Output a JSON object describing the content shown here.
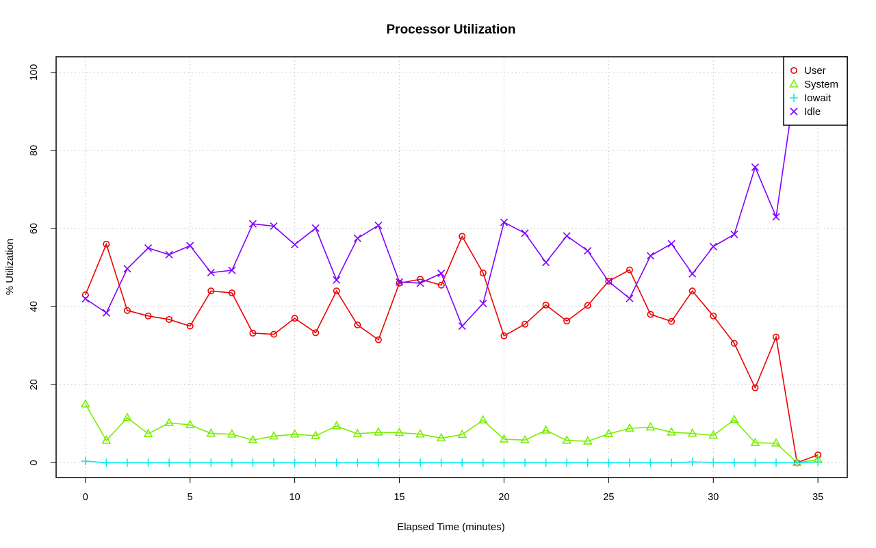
{
  "chart_data": {
    "type": "line",
    "title": "Processor Utilization",
    "xlabel": "Elapsed Time (minutes)",
    "ylabel": "% Utilization",
    "xlim": [
      -1.4,
      36.4
    ],
    "ylim": [
      -3.8,
      104
    ],
    "xticks": [
      0,
      5,
      10,
      15,
      20,
      25,
      30,
      35
    ],
    "yticks": [
      0,
      20,
      40,
      60,
      80,
      100
    ],
    "grid": true,
    "legend_position": "top-right",
    "x": [
      0,
      1,
      2,
      3,
      4,
      5,
      6,
      7,
      8,
      9,
      10,
      11,
      12,
      13,
      14,
      15,
      16,
      17,
      18,
      19,
      20,
      21,
      22,
      23,
      24,
      25,
      26,
      27,
      28,
      29,
      30,
      31,
      32,
      33,
      34,
      35
    ],
    "series": [
      {
        "name": "User",
        "color": "#ee0000",
        "marker": "circle",
        "values": [
          43,
          56,
          39,
          37.6,
          36.7,
          35,
          44,
          43.5,
          33.2,
          32.9,
          37,
          33.3,
          44,
          35.3,
          31.5,
          46,
          47,
          45.5,
          58,
          48.6,
          32.5,
          35.5,
          40.4,
          36.3,
          40.3,
          46.5,
          49.4,
          38,
          36.2,
          44,
          37.6,
          30.6,
          19.2,
          32.2,
          0,
          2
        ]
      },
      {
        "name": "System",
        "color": "#77ee00",
        "marker": "triangle",
        "values": [
          15,
          5.7,
          11.5,
          7.4,
          10.2,
          9.7,
          7.5,
          7.3,
          5.8,
          6.8,
          7.3,
          6.9,
          9.4,
          7.4,
          7.8,
          7.7,
          7.3,
          6.3,
          7.2,
          10.9,
          6,
          5.8,
          8.3,
          5.7,
          5.5,
          7.4,
          8.8,
          9.1,
          7.8,
          7.5,
          7,
          11,
          5.1,
          5,
          0,
          0.8
        ]
      },
      {
        "name": "Iowait",
        "color": "#00eeee",
        "marker": "plus",
        "values": [
          0.4,
          0,
          0,
          0,
          0,
          0,
          0,
          0,
          0,
          0,
          0,
          0,
          0,
          0,
          0,
          0,
          0,
          0,
          0,
          0,
          0,
          0,
          0,
          0,
          0,
          0,
          0,
          0,
          0,
          0.2,
          0.1,
          0,
          0,
          0,
          0,
          0.2
        ]
      },
      {
        "name": "Idle",
        "color": "#7f00ff",
        "marker": "x",
        "values": [
          42,
          38.4,
          49.7,
          55,
          53.3,
          55.6,
          48.7,
          49.3,
          61.2,
          60.6,
          55.9,
          60.1,
          46.8,
          57.5,
          60.8,
          46.3,
          46,
          48.5,
          35,
          40.8,
          61.6,
          58.8,
          51.3,
          58.1,
          54.3,
          46.4,
          42.1,
          53,
          56.1,
          48.4,
          55.4,
          58.5,
          75.7,
          63,
          100,
          97
        ]
      }
    ]
  }
}
